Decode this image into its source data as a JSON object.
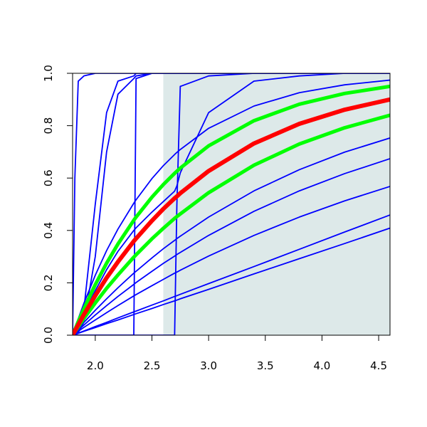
{
  "chart_data": {
    "type": "line",
    "x": [
      1.8,
      1.82,
      1.85,
      1.9,
      2.0,
      2.1,
      2.2,
      2.34,
      2.36,
      2.5,
      2.6,
      2.7,
      2.72,
      2.75,
      3.0,
      3.4,
      3.8,
      4.2,
      4.6
    ],
    "xlim": [
      1.8,
      4.6
    ],
    "ylim": [
      0,
      1
    ],
    "xticks": [
      {
        "value": 2.0,
        "label": "2.0"
      },
      {
        "value": 2.5,
        "label": "2.5"
      },
      {
        "value": 3.0,
        "label": "3.0"
      },
      {
        "value": 3.5,
        "label": "3.5"
      },
      {
        "value": 4.0,
        "label": "4.0"
      },
      {
        "value": 4.5,
        "label": "4.5"
      }
    ],
    "yticks": [
      {
        "value": 0,
        "label": "0.0"
      },
      {
        "value": 0.2,
        "label": "0.2"
      },
      {
        "value": 0.4,
        "label": "0.4"
      },
      {
        "value": 0.6,
        "label": "0.6"
      },
      {
        "value": 0.8,
        "label": "0.8"
      },
      {
        "value": 1.0,
        "label": "1.0"
      }
    ],
    "shaded_region": {
      "x": [
        2.6,
        4.6
      ],
      "color": "#dde9e9"
    },
    "series": [
      {
        "color": "#0000ff",
        "values": [
          0,
          0.6,
          0.97,
          0.99,
          1,
          1,
          1,
          1,
          1,
          1,
          1,
          1,
          1,
          1,
          1,
          1,
          1,
          1,
          1
        ]
      },
      {
        "color": "#0000ff",
        "values": [
          0,
          0.01,
          0.03,
          0.1,
          0.5,
          0.85,
          0.97,
          0.99,
          1,
          1,
          1,
          1,
          1,
          1,
          1,
          1,
          1,
          1,
          1
        ]
      },
      {
        "color": "#0000ff",
        "values": [
          0,
          0,
          0.01,
          0.05,
          0.3,
          0.7,
          0.92,
          0.98,
          0.99,
          1,
          1,
          1,
          1,
          1,
          1,
          1,
          1,
          1,
          1
        ]
      },
      {
        "color": "#0000ff",
        "values": [
          0,
          0,
          0,
          0,
          0,
          0,
          0,
          0,
          0.98,
          1,
          1,
          1,
          1,
          1,
          1,
          1,
          1,
          1,
          1
        ]
      },
      {
        "color": "#0000ff",
        "values": [
          0,
          0,
          0,
          0,
          0,
          0,
          0,
          0,
          0,
          0,
          0,
          0,
          0.5,
          0.95,
          0.99,
          1,
          1,
          1,
          1
        ]
      },
      {
        "color": "#0000ff",
        "values": [
          0,
          0.02,
          0.05,
          0.09,
          0.17,
          0.25,
          0.32,
          0.4,
          0.41,
          0.47,
          0.51,
          0.55,
          0.57,
          0.62,
          0.85,
          0.97,
          0.99,
          1,
          1
        ]
      },
      {
        "color": "#0000ff",
        "values": [
          0,
          0.026,
          0.063,
          0.122,
          0.229,
          0.323,
          0.405,
          0.504,
          0.517,
          0.598,
          0.647,
          0.69,
          0.698,
          0.709,
          0.79,
          0.875,
          0.926,
          0.956,
          0.974
        ]
      },
      {
        "color": "#0000ff",
        "values": [
          0,
          0.01,
          0.025,
          0.049,
          0.095,
          0.139,
          0.181,
          0.237,
          0.244,
          0.295,
          0.33,
          0.362,
          0.369,
          0.378,
          0.451,
          0.551,
          0.632,
          0.699,
          0.753
        ]
      },
      {
        "color": "#0000ff",
        "values": [
          0,
          0.008,
          0.02,
          0.039,
          0.077,
          0.113,
          0.148,
          0.194,
          0.201,
          0.244,
          0.274,
          0.302,
          0.308,
          0.316,
          0.381,
          0.473,
          0.551,
          0.617,
          0.674
        ]
      },
      {
        "color": "#0000ff",
        "values": [
          0,
          0.006,
          0.015,
          0.03,
          0.058,
          0.086,
          0.113,
          0.15,
          0.155,
          0.189,
          0.213,
          0.237,
          0.241,
          0.248,
          0.302,
          0.381,
          0.451,
          0.513,
          0.568
        ]
      },
      {
        "color": "#0000ff",
        "values": [
          0,
          0.003,
          0.007,
          0.015,
          0.029,
          0.044,
          0.058,
          0.079,
          0.082,
          0.102,
          0.117,
          0.131,
          0.134,
          0.139,
          0.175,
          0.234,
          0.292,
          0.35,
          0.409
        ]
      },
      {
        "color": "#0000ff",
        "values": [
          0,
          0.003,
          0.008,
          0.016,
          0.033,
          0.049,
          0.066,
          0.089,
          0.092,
          0.115,
          0.131,
          0.148,
          0.151,
          0.156,
          0.197,
          0.262,
          0.328,
          0.394,
          0.459
        ]
      },
      {
        "color": "#00ff00",
        "width": 5,
        "values": [
          0,
          0.021,
          0.052,
          0.101,
          0.193,
          0.275,
          0.348,
          0.439,
          0.451,
          0.527,
          0.575,
          0.618,
          0.626,
          0.638,
          0.723,
          0.819,
          0.882,
          0.923,
          0.95
        ]
      },
      {
        "color": "#00ff00",
        "width": 5,
        "values": [
          0,
          0.013,
          0.032,
          0.064,
          0.123,
          0.179,
          0.23,
          0.298,
          0.307,
          0.368,
          0.408,
          0.446,
          0.453,
          0.463,
          0.544,
          0.649,
          0.73,
          0.792,
          0.84
        ]
      },
      {
        "color": "#ff0000",
        "width": 6,
        "values": [
          0,
          0.016,
          0.04,
          0.079,
          0.151,
          0.219,
          0.28,
          0.359,
          0.369,
          0.437,
          0.482,
          0.523,
          0.53,
          0.542,
          0.627,
          0.732,
          0.807,
          0.861,
          0.9
        ]
      }
    ]
  }
}
